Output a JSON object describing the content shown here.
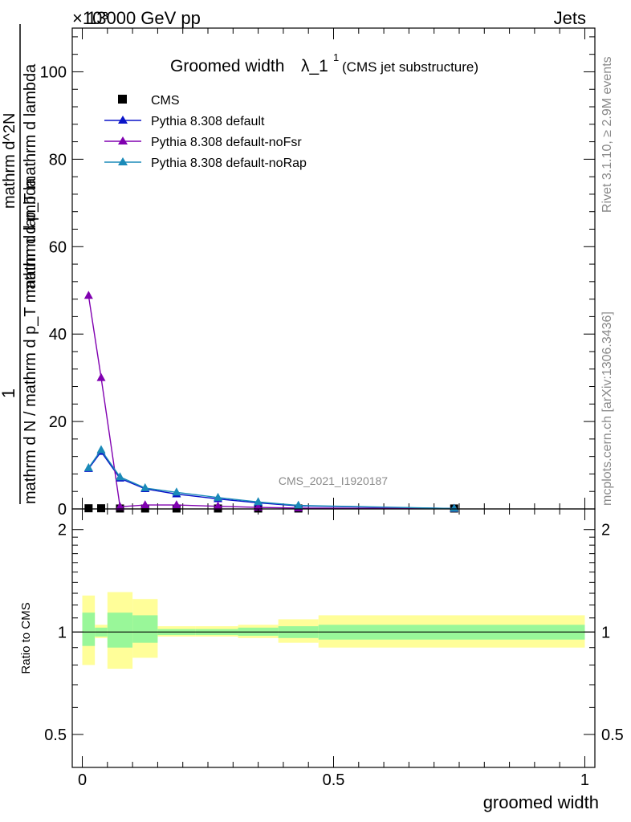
{
  "header": {
    "left": "13000 GeV pp",
    "right": "Jets",
    "exponent": "×10³"
  },
  "side_labels": {
    "rivet": "Rivet 3.1.10, ≥ 2.9M events",
    "mcplots": "mcplots.cern.ch [arXiv:1306.3436]"
  },
  "colors": {
    "cms": "#000000",
    "default": "#0a14c8",
    "noFsr": "#8000b0",
    "noRap": "#1a8ab8",
    "band_stat": "#99f799",
    "band_total": "#fffe99"
  },
  "chart_data": [
    {
      "type": "line",
      "title": "Groomed width λ_1¹ (CMS jet substructure)",
      "title_main": "Groomed width",
      "title_lambda": "λ_1",
      "title_sup": "1",
      "title_sub": "(CMS jet substructure)",
      "watermark": "CMS_2021_I1920187",
      "ylabel_num": "1",
      "ylabel_den": "mathrm d N / mathrm d p_T mathrm d lambda",
      "ylabel_top": "mathrm d^2N",
      "ylabel_bottom": "mathrm d p_T mathrm d lambda",
      "xlim": [
        -0.02,
        1.02
      ],
      "ylim": [
        0,
        110
      ],
      "yticks": [
        0,
        20,
        40,
        60,
        80,
        100
      ],
      "ytick_labels": [
        "0",
        "20",
        "40",
        "60",
        "80",
        "100"
      ],
      "legend": "top-left",
      "series": [
        {
          "name": "CMS",
          "marker": "square",
          "x": [
            0.0125,
            0.0375,
            0.075,
            0.125,
            0.1875,
            0.27,
            0.35,
            0.43,
            0.74
          ],
          "y": [
            0.15,
            0.15,
            0.1,
            0.1,
            0.1,
            0.1,
            0.1,
            0.1,
            0.1
          ]
        },
        {
          "name": "Pythia 8.308 default",
          "marker": "triangle",
          "x": [
            0.0125,
            0.0375,
            0.075,
            0.125,
            0.1875,
            0.27,
            0.35,
            0.43,
            0.74
          ],
          "y": [
            9.2,
            13.1,
            7.0,
            4.6,
            3.4,
            2.3,
            1.4,
            0.7,
            0.1
          ]
        },
        {
          "name": "Pythia 8.308 default-noFsr",
          "marker": "triangle",
          "x": [
            0.0125,
            0.0375,
            0.075,
            0.125,
            0.1875,
            0.27,
            0.35,
            0.43,
            0.74
          ],
          "y": [
            48.8,
            30.0,
            0.5,
            0.9,
            0.9,
            0.6,
            0.35,
            0.2,
            0.05
          ]
        },
        {
          "name": "Pythia 8.308 default-noRap",
          "marker": "triangle",
          "x": [
            0.0125,
            0.0375,
            0.075,
            0.125,
            0.1875,
            0.27,
            0.35,
            0.43,
            0.74
          ],
          "y": [
            9.4,
            13.5,
            7.3,
            4.8,
            3.8,
            2.6,
            1.6,
            0.8,
            0.1
          ]
        }
      ]
    },
    {
      "type": "area",
      "ylabel": "Ratio to CMS",
      "xlabel": "groomed width",
      "xlim": [
        -0.02,
        1.02
      ],
      "ylim": [
        0.4,
        2.3
      ],
      "yscale": "log",
      "yticks": [
        0.5,
        1,
        2
      ],
      "ytick_labels": [
        "0.5",
        "1",
        "2"
      ],
      "xticks": [
        0,
        0.5,
        1
      ],
      "xtick_labels": [
        "0",
        "0.5",
        "1"
      ],
      "bands": [
        {
          "x0": 0.0,
          "x1": 0.025,
          "stat_lo": 0.91,
          "stat_hi": 1.14,
          "tot_lo": 0.8,
          "tot_hi": 1.28
        },
        {
          "x0": 0.025,
          "x1": 0.05,
          "stat_lo": 0.97,
          "stat_hi": 1.03,
          "tot_lo": 0.96,
          "tot_hi": 1.05
        },
        {
          "x0": 0.05,
          "x1": 0.1,
          "stat_lo": 0.9,
          "stat_hi": 1.14,
          "tot_lo": 0.78,
          "tot_hi": 1.31
        },
        {
          "x0": 0.1,
          "x1": 0.15,
          "stat_lo": 0.93,
          "stat_hi": 1.12,
          "tot_lo": 0.84,
          "tot_hi": 1.25
        },
        {
          "x0": 0.15,
          "x1": 0.225,
          "stat_lo": 0.98,
          "stat_hi": 1.02,
          "tot_lo": 0.97,
          "tot_hi": 1.04
        },
        {
          "x0": 0.225,
          "x1": 0.31,
          "stat_lo": 0.98,
          "stat_hi": 1.02,
          "tot_lo": 0.97,
          "tot_hi": 1.04
        },
        {
          "x0": 0.31,
          "x1": 0.39,
          "stat_lo": 0.975,
          "stat_hi": 1.03,
          "tot_lo": 0.96,
          "tot_hi": 1.05
        },
        {
          "x0": 0.39,
          "x1": 0.47,
          "stat_lo": 0.96,
          "stat_hi": 1.04,
          "tot_lo": 0.93,
          "tot_hi": 1.09
        },
        {
          "x0": 0.47,
          "x1": 1.0,
          "stat_lo": 0.95,
          "stat_hi": 1.05,
          "tot_lo": 0.9,
          "tot_hi": 1.12
        }
      ]
    }
  ]
}
